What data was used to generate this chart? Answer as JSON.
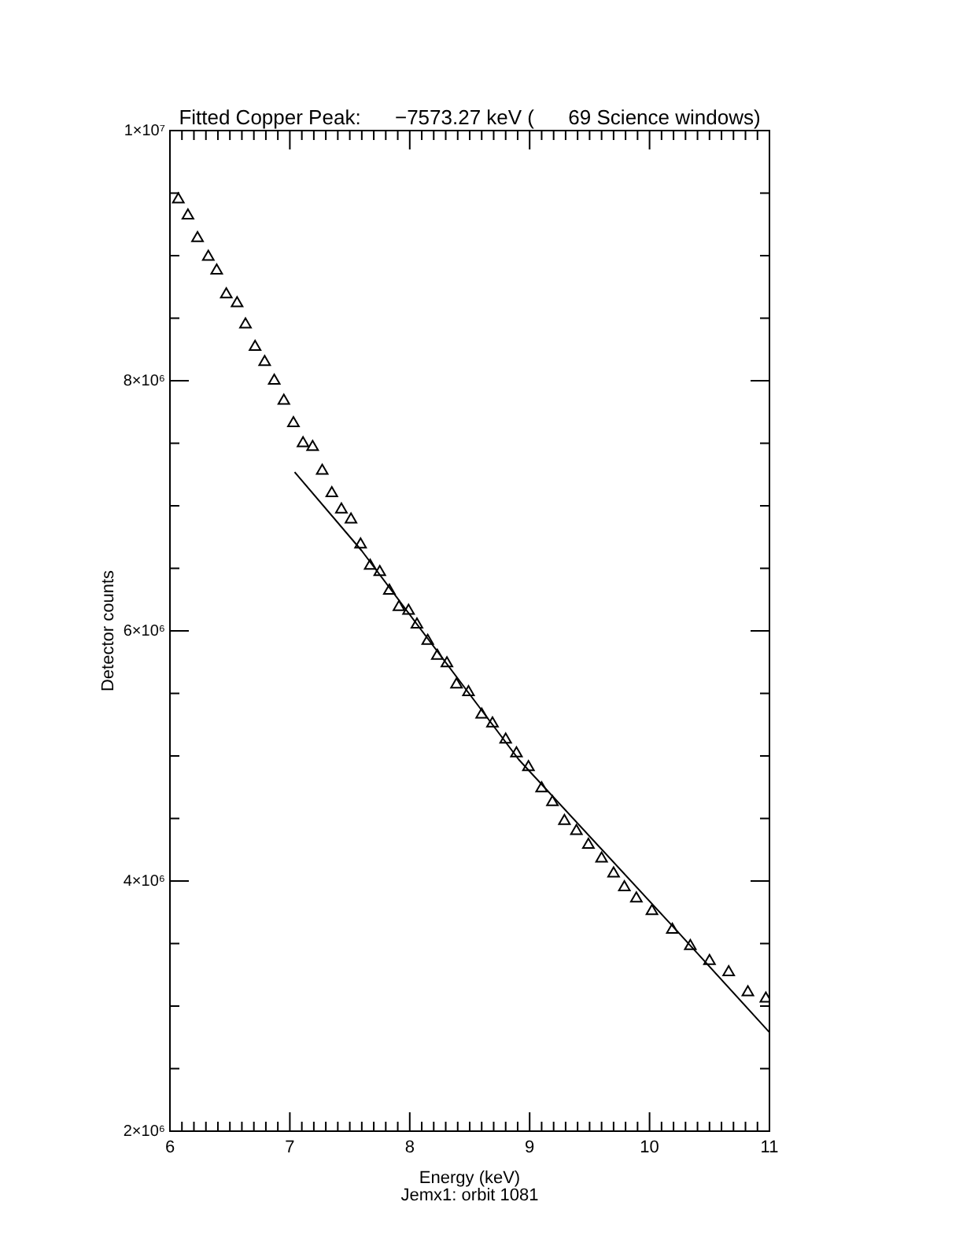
{
  "chart_data": {
    "type": "scatter",
    "title": "Fitted Copper Peak:      −7573.27 keV (      69 Science windows)",
    "xlabel": "Energy (keV)",
    "ylabel": "Detector counts",
    "annotations": [
      "Jemx1: orbit 1081"
    ],
    "xlim": [
      6,
      11
    ],
    "ylim": [
      2000000,
      10000000
    ],
    "xticks": [
      6,
      {
        "value": 6.1,
        "label": null
      },
      {
        "value": 6.2,
        "label": null
      },
      {
        "value": 6.3,
        "label": null
      },
      {
        "value": 6.4,
        "label": null
      },
      {
        "value": 6.5,
        "label": null
      },
      {
        "value": 6.6,
        "label": null
      },
      {
        "value": 6.7,
        "label": null
      },
      {
        "value": 6.8,
        "label": null
      },
      {
        "value": 6.9,
        "label": null
      },
      7,
      {
        "value": 7.1,
        "label": null
      },
      {
        "value": 7.2,
        "label": null
      },
      {
        "value": 7.3,
        "label": null
      },
      {
        "value": 7.4,
        "label": null
      },
      {
        "value": 7.5,
        "label": null
      },
      {
        "value": 7.6,
        "label": null
      },
      {
        "value": 7.7,
        "label": null
      },
      {
        "value": 7.8,
        "label": null
      },
      {
        "value": 7.9,
        "label": null
      },
      8,
      {
        "value": 8.1,
        "label": null
      },
      {
        "value": 8.2,
        "label": null
      },
      {
        "value": 8.3,
        "label": null
      },
      {
        "value": 8.4,
        "label": null
      },
      {
        "value": 8.5,
        "label": null
      },
      {
        "value": 8.6,
        "label": null
      },
      {
        "value": 8.7,
        "label": null
      },
      {
        "value": 8.8,
        "label": null
      },
      {
        "value": 8.9,
        "label": null
      },
      9,
      {
        "value": 9.1,
        "label": null
      },
      {
        "value": 9.2,
        "label": null
      },
      {
        "value": 9.3,
        "label": null
      },
      {
        "value": 9.4,
        "label": null
      },
      {
        "value": 9.5,
        "label": null
      },
      {
        "value": 9.6,
        "label": null
      },
      {
        "value": 9.7,
        "label": null
      },
      {
        "value": 9.8,
        "label": null
      },
      {
        "value": 9.9,
        "label": null
      },
      10,
      {
        "value": 10.1,
        "label": null
      },
      {
        "value": 10.2,
        "label": null
      },
      {
        "value": 10.3,
        "label": null
      },
      {
        "value": 10.4,
        "label": null
      },
      {
        "value": 10.5,
        "label": null
      },
      {
        "value": 10.6,
        "label": null
      },
      {
        "value": 10.7,
        "label": null
      },
      {
        "value": 10.8,
        "label": null
      },
      {
        "value": 10.9,
        "label": null
      },
      11
    ],
    "yticks": [
      {
        "value": 2000000,
        "label": "2×10⁶"
      },
      {
        "value": 2500000,
        "label": null
      },
      {
        "value": 3000000,
        "label": null
      },
      {
        "value": 3500000,
        "label": null
      },
      {
        "value": 4000000,
        "label": "4×10⁶"
      },
      {
        "value": 4500000,
        "label": null
      },
      {
        "value": 5000000,
        "label": null
      },
      {
        "value": 5500000,
        "label": null
      },
      {
        "value": 6000000,
        "label": "6×10⁶"
      },
      {
        "value": 6500000,
        "label": null
      },
      {
        "value": 7000000,
        "label": null
      },
      {
        "value": 7500000,
        "label": null
      },
      {
        "value": 8000000,
        "label": "8×10⁶"
      },
      {
        "value": 8500000,
        "label": null
      },
      {
        "value": 9000000,
        "label": null
      },
      {
        "value": 9500000,
        "label": null
      },
      {
        "value": 10000000,
        "label": "1×10⁷"
      }
    ],
    "grid": false,
    "legend": false,
    "series": [
      {
        "marker": "triangle",
        "color": "#000000",
        "x": [
          6.07,
          6.15,
          6.23,
          6.32,
          6.39,
          6.47,
          6.56,
          6.63,
          6.71,
          6.79,
          6.87,
          6.95,
          7.03,
          7.11,
          7.19,
          7.27,
          7.35,
          7.43,
          7.51,
          7.59,
          7.67,
          7.75,
          7.83,
          7.91,
          7.99,
          8.06,
          8.15,
          8.23,
          8.31,
          8.39,
          8.49,
          8.6,
          8.69,
          8.8,
          8.89,
          8.99,
          9.1,
          9.19,
          9.29,
          9.39,
          9.49,
          9.6,
          9.7,
          9.79,
          9.89,
          10.02,
          10.19,
          10.34,
          10.5,
          10.66,
          10.82,
          10.97
        ],
        "values": [
          9450000,
          9320000,
          9140000,
          8990000,
          8880000,
          8690000,
          8620000,
          8450000,
          8270000,
          8150000,
          8000000,
          7840000,
          7660000,
          7500000,
          7470000,
          7280000,
          7100000,
          6970000,
          6890000,
          6690000,
          6520000,
          6470000,
          6320000,
          6190000,
          6160000,
          6050000,
          5920000,
          5800000,
          5740000,
          5570000,
          5510000,
          5330000,
          5260000,
          5130000,
          5020000,
          4910000,
          4740000,
          4630000,
          4480000,
          4400000,
          4290000,
          4180000,
          4060000,
          3950000,
          3860000,
          3760000,
          3610000,
          3480000,
          3360000,
          3270000,
          3110000,
          3060000
        ]
      },
      {
        "type": "line",
        "marker": "none",
        "line_style": "solid",
        "color": "#000000",
        "x": [
          7.04,
          7.6,
          8.91,
          10.23,
          11
        ],
        "values": [
          7270000,
          6640000,
          4970000,
          3600000,
          2790000
        ]
      }
    ]
  }
}
